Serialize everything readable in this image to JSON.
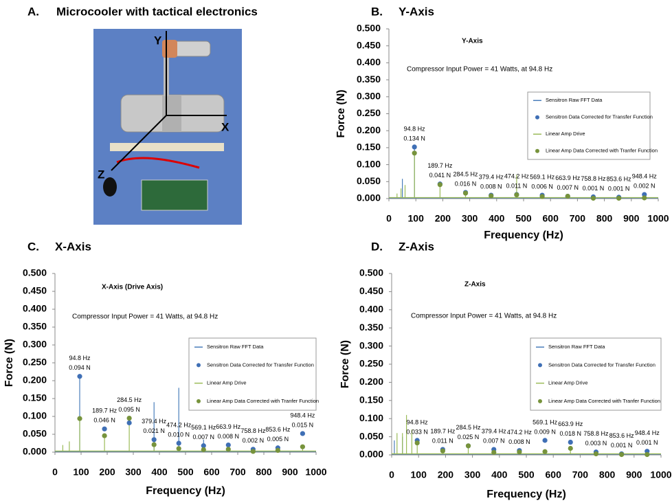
{
  "figure": {
    "panel": "A.",
    "title": "Microcooler with tactical electronics",
    "axis_y": "Y",
    "axis_x": "X",
    "axis_z": "Z"
  },
  "chart_data": [
    {
      "type": "line",
      "panel": "B.",
      "title": "Y-Axis",
      "inner_title": "Y-Axis",
      "annotation": "Compressor Input Power = 41 Watts, at 94.8 Hz",
      "xlabel": "Frequency (Hz)",
      "ylabel": "Force (N)",
      "xlim": [
        0,
        1000
      ],
      "ylim": [
        0,
        0.5
      ],
      "xticks": [
        0,
        100,
        200,
        300,
        400,
        500,
        600,
        700,
        800,
        900,
        1000
      ],
      "yticks": [
        {
          "value": 0,
          "label": "0.000"
        },
        {
          "value": 0.05,
          "label": "0.050"
        },
        {
          "value": 0.1,
          "label": "0.100"
        },
        {
          "value": 0.15,
          "label": "0.150"
        },
        {
          "value": 0.2,
          "label": "0.200"
        },
        {
          "value": 0.25,
          "label": "0.250"
        },
        {
          "value": 0.3,
          "label": "0.300"
        },
        {
          "value": 0.35,
          "label": "0.350"
        },
        {
          "value": 0.4,
          "label": "0.400"
        },
        {
          "value": 0.45,
          "label": "0.450"
        },
        {
          "value": 0.5,
          "label": "0.500"
        }
      ],
      "series": [
        {
          "name": "Sensitron Raw FFT Data",
          "color": "#4a7ebb",
          "mode": "line",
          "x": [
            0,
            50,
            50,
            50,
            94.8,
            94.8,
            94.8,
            1000
          ],
          "values": [
            0.002,
            0.002,
            0.058,
            0.002,
            0.002,
            0.152,
            0.002,
            0.002
          ]
        },
        {
          "name": "Sensitron Data Corrected for Transfer Function",
          "color": "#3f6fb5",
          "mode": "markers",
          "x": [
            94.8,
            189.7,
            284.5,
            379.4,
            474.2,
            569.1,
            663.9,
            758.8,
            853.6,
            948.4
          ],
          "values": [
            0.152,
            0.043,
            0.018,
            0.01,
            0.012,
            0.01,
            0.007,
            0.005,
            0.004,
            0.012
          ]
        },
        {
          "name": "Linear Amp Drive",
          "color": "#9bbb59",
          "mode": "line",
          "x": [
            0,
            30,
            30,
            30,
            45,
            45,
            45,
            60,
            60,
            60,
            94.8,
            94.8,
            94.8,
            189.7,
            189.7,
            189.7,
            284.5,
            284.5,
            284.5,
            474.2,
            474.2,
            474.2,
            1000
          ],
          "values": [
            0.003,
            0.003,
            0.015,
            0.003,
            0.003,
            0.03,
            0.003,
            0.003,
            0.04,
            0.003,
            0.003,
            0.14,
            0.003,
            0.003,
            0.046,
            0.003,
            0.003,
            0.02,
            0.003,
            0.003,
            0.07,
            0.003,
            0.003
          ]
        },
        {
          "name": "Linear Amp Data Corrected with Tranfer Function",
          "color": "#77933c",
          "mode": "markers",
          "x": [
            94.8,
            189.7,
            284.5,
            379.4,
            474.2,
            569.1,
            663.9,
            758.8,
            853.6,
            948.4
          ],
          "values": [
            0.134,
            0.041,
            0.016,
            0.008,
            0.011,
            0.006,
            0.007,
            0.001,
            0.001,
            0.002
          ],
          "x_labels": [
            "94.8 Hz",
            "189.7 Hz",
            "284.5 Hz",
            "379.4 Hz",
            "474.2 Hz",
            "569.1 Hz",
            "663.9 Hz",
            "758.8 Hz",
            "853.6 Hz",
            "948.4 Hz"
          ],
          "value_labels": [
            "0.134 N",
            "0.041 N",
            "0.016 N",
            "0.008 N",
            "0.011 N",
            "0.006 N",
            "0.007 N",
            "0.001 N",
            "0.001 N",
            "0.002 N"
          ]
        }
      ]
    },
    {
      "type": "line",
      "panel": "C.",
      "title": "X-Axis",
      "inner_title": "X-Axis (Drive Axis)",
      "annotation": "Compressor Input Power = 41 Watts, at 94.8 Hz",
      "xlabel": "Frequency (Hz)",
      "ylabel": "Force (N)",
      "xlim": [
        0,
        1000
      ],
      "ylim": [
        0,
        0.5
      ],
      "xticks": [
        0,
        100,
        200,
        300,
        400,
        500,
        600,
        700,
        800,
        900,
        1000
      ],
      "yticks": [
        {
          "value": 0,
          "label": "0.000"
        },
        {
          "value": 0.05,
          "label": "0.050"
        },
        {
          "value": 0.1,
          "label": "0.100"
        },
        {
          "value": 0.15,
          "label": "0.150"
        },
        {
          "value": 0.2,
          "label": "0.200"
        },
        {
          "value": 0.25,
          "label": "0.250"
        },
        {
          "value": 0.3,
          "label": "0.300"
        },
        {
          "value": 0.35,
          "label": "0.350"
        },
        {
          "value": 0.4,
          "label": "0.400"
        },
        {
          "value": 0.45,
          "label": "0.450"
        },
        {
          "value": 0.5,
          "label": "0.500"
        }
      ],
      "series": [
        {
          "name": "Sensitron Raw FFT Data",
          "color": "#4a7ebb",
          "mode": "line",
          "x": [
            0,
            94.8,
            94.8,
            94.8,
            379.4,
            379.4,
            379.4,
            474.2,
            474.2,
            474.2,
            569.1,
            569.1,
            569.1,
            1000
          ],
          "values": [
            0.002,
            0.002,
            0.21,
            0.002,
            0.002,
            0.14,
            0.002,
            0.002,
            0.18,
            0.002,
            0.002,
            0.035,
            0.002,
            0.002
          ]
        },
        {
          "name": "Sensitron Data Corrected for Transfer Function",
          "color": "#3f6fb5",
          "mode": "markers",
          "x": [
            94.8,
            189.7,
            284.5,
            379.4,
            474.2,
            569.1,
            663.9,
            758.8,
            853.6,
            948.4
          ],
          "values": [
            0.212,
            0.065,
            0.082,
            0.035,
            0.025,
            0.018,
            0.02,
            0.008,
            0.012,
            0.052
          ]
        },
        {
          "name": "Linear Amp Drive",
          "color": "#9bbb59",
          "mode": "line",
          "x": [
            0,
            30,
            30,
            30,
            55,
            55,
            55,
            94.8,
            94.8,
            94.8,
            189.7,
            189.7,
            189.7,
            284.5,
            284.5,
            284.5,
            379.4,
            379.4,
            379.4,
            948.4,
            948.4,
            948.4,
            1000
          ],
          "values": [
            0.003,
            0.003,
            0.02,
            0.003,
            0.003,
            0.03,
            0.003,
            0.003,
            0.1,
            0.003,
            0.003,
            0.05,
            0.003,
            0.003,
            0.1,
            0.003,
            0.003,
            0.025,
            0.003,
            0.003,
            0.02,
            0.003,
            0.003
          ]
        },
        {
          "name": "Linear Amp Data Corrected with Tranfer Function",
          "color": "#77933c",
          "mode": "markers",
          "x": [
            94.8,
            189.7,
            284.5,
            379.4,
            474.2,
            569.1,
            663.9,
            758.8,
            853.6,
            948.4
          ],
          "values": [
            0.094,
            0.046,
            0.095,
            0.021,
            0.01,
            0.007,
            0.008,
            0.002,
            0.005,
            0.015
          ],
          "x_labels": [
            "94.8 Hz",
            "189.7 Hz",
            "284.5 Hz",
            "379.4 Hz",
            "474.2 Hz",
            "569.1 Hz",
            "663.9 Hz",
            "758.8 Hz",
            "853.6 Hz",
            "948.4 Hz"
          ],
          "value_labels": [
            "0.094 N",
            "0.046 N",
            "0.095 N",
            "0.021 N",
            "0.010 N",
            "0.007 N",
            "0.008 N",
            "0.002 N",
            "0.005 N",
            "0.015 N"
          ]
        }
      ]
    },
    {
      "type": "line",
      "panel": "D.",
      "title": "Z-Axis",
      "inner_title": "Z-Axis",
      "annotation": "Compressor Input Power = 41 Watts, at 94.8 Hz",
      "xlabel": "Frequency (Hz)",
      "ylabel": "Force (N)",
      "xlim": [
        0,
        1000
      ],
      "ylim": [
        0,
        0.5
      ],
      "xticks": [
        0,
        100,
        200,
        300,
        400,
        500,
        600,
        700,
        800,
        900,
        1000
      ],
      "yticks": [
        {
          "value": 0,
          "label": "0.000"
        },
        {
          "value": 0.05,
          "label": "0.050"
        },
        {
          "value": 0.1,
          "label": "0.100"
        },
        {
          "value": 0.15,
          "label": "0.150"
        },
        {
          "value": 0.2,
          "label": "0.200"
        },
        {
          "value": 0.25,
          "label": "0.250"
        },
        {
          "value": 0.3,
          "label": "0.300"
        },
        {
          "value": 0.35,
          "label": "0.350"
        },
        {
          "value": 0.4,
          "label": "0.400"
        },
        {
          "value": 0.45,
          "label": "0.450"
        },
        {
          "value": 0.5,
          "label": "0.500"
        }
      ],
      "series": [
        {
          "name": "Sensitron Raw FFT Data",
          "color": "#4a7ebb",
          "mode": "line",
          "x": [
            0,
            10,
            10,
            10,
            40,
            40,
            40,
            1000
          ],
          "values": [
            0.002,
            0.002,
            0.04,
            0.002,
            0.002,
            0.05,
            0.002,
            0.002
          ]
        },
        {
          "name": "Sensitron Data Corrected for Transfer Function",
          "color": "#3f6fb5",
          "mode": "markers",
          "x": [
            94.8,
            189.7,
            284.5,
            379.4,
            474.2,
            569.1,
            663.9,
            758.8,
            853.6,
            948.4
          ],
          "values": [
            0.04,
            0.015,
            0.025,
            0.015,
            0.012,
            0.04,
            0.035,
            0.008,
            0.003,
            0.01
          ]
        },
        {
          "name": "Linear Amp Drive",
          "color": "#9bbb59",
          "mode": "line",
          "x": [
            0,
            20,
            20,
            20,
            40,
            40,
            40,
            55,
            55,
            55,
            75,
            75,
            75,
            94.8,
            94.8,
            94.8,
            284.5,
            284.5,
            284.5,
            663.9,
            663.9,
            663.9,
            1000
          ],
          "values": [
            0.003,
            0.003,
            0.06,
            0.003,
            0.003,
            0.06,
            0.003,
            0.003,
            0.11,
            0.003,
            0.003,
            0.07,
            0.003,
            0.003,
            0.035,
            0.003,
            0.003,
            0.025,
            0.003,
            0.003,
            0.02,
            0.003,
            0.003
          ]
        },
        {
          "name": "Linear Amp Data Corrected with Tranfer Function",
          "color": "#77933c",
          "mode": "markers",
          "x": [
            94.8,
            189.7,
            284.5,
            379.4,
            474.2,
            569.1,
            663.9,
            758.8,
            853.6,
            948.4
          ],
          "values": [
            0.033,
            0.011,
            0.025,
            0.007,
            0.008,
            0.009,
            0.018,
            0.003,
            0.001,
            0.001
          ],
          "x_labels": [
            "94.8 Hz",
            "189.7 Hz",
            "284.5 Hz",
            "379.4 Hz",
            "474.2 Hz",
            "569.1 Hz",
            "663.9 Hz",
            "758.8 Hz",
            "853.6 Hz",
            "948.4 Hz"
          ],
          "value_labels": [
            "0.033 N",
            "0.011 N",
            "0.025 N",
            "0.007 N",
            "0.008 N",
            "0.009 N",
            "0.018 N",
            "0.003 N",
            "0.001 N",
            "0.001 N"
          ]
        }
      ]
    }
  ]
}
